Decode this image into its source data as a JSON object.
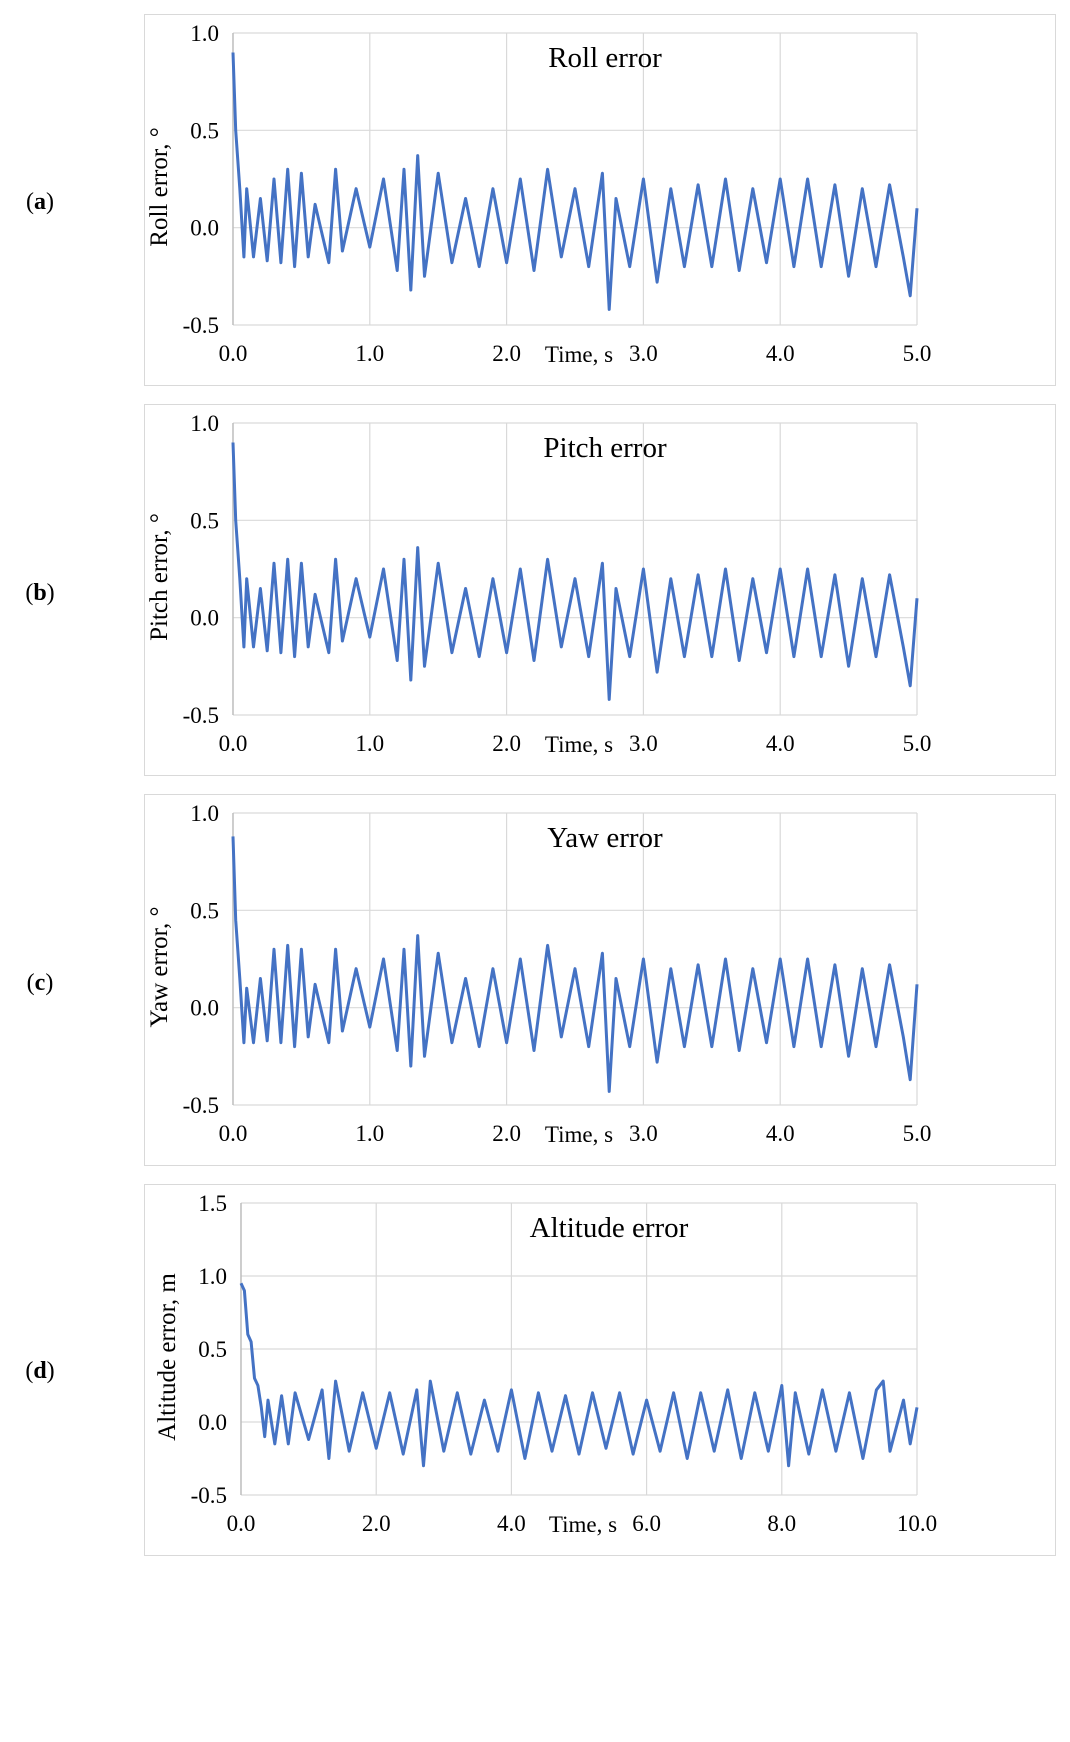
{
  "panels": [
    {
      "label": "a",
      "title": "Roll error",
      "ylabel": "Roll error, °",
      "xlabel": "Time, s"
    },
    {
      "label": "b",
      "title": "Pitch error",
      "ylabel": "Pitch error, °",
      "xlabel": "Time, s"
    },
    {
      "label": "c",
      "title": "Yaw error",
      "ylabel": "Yaw error, °",
      "xlabel": "Time, s"
    },
    {
      "label": "d",
      "title": "Altitude error",
      "ylabel": "Altitude error, m",
      "xlabel": "Time, s"
    }
  ],
  "line_color": "#4472c4",
  "chart_data": [
    {
      "type": "line",
      "title": "Roll error",
      "xlabel": "Time, s",
      "ylabel": "Roll error, °",
      "xlim": [
        0,
        5
      ],
      "ylim": [
        -0.5,
        1.0
      ],
      "xticks": [
        "0.0",
        "1.0",
        "2.0",
        "3.0",
        "4.0",
        "5.0"
      ],
      "yticks": [
        "-0.5",
        "0.0",
        "0.5",
        "1.0"
      ],
      "grid": true,
      "series": [
        {
          "x": [
            0,
            0.02,
            0.05,
            0.08,
            0.1,
            0.15,
            0.2,
            0.25,
            0.3,
            0.35,
            0.4,
            0.45,
            0.5,
            0.55,
            0.6,
            0.7,
            0.75,
            0.8,
            0.9,
            1.0,
            1.1,
            1.2,
            1.25,
            1.3,
            1.35,
            1.4,
            1.5,
            1.6,
            1.7,
            1.8,
            1.9,
            2.0,
            2.1,
            2.2,
            2.3,
            2.4,
            2.5,
            2.6,
            2.7,
            2.75,
            2.8,
            2.9,
            3.0,
            3.1,
            3.2,
            3.3,
            3.4,
            3.5,
            3.6,
            3.7,
            3.8,
            3.9,
            4.0,
            4.1,
            4.2,
            4.3,
            4.4,
            4.5,
            4.6,
            4.7,
            4.8,
            4.9,
            4.95,
            5.0
          ],
          "y": [
            0.9,
            0.5,
            0.2,
            -0.15,
            0.2,
            -0.15,
            0.15,
            -0.17,
            0.25,
            -0.18,
            0.3,
            -0.2,
            0.28,
            -0.15,
            0.12,
            -0.18,
            0.3,
            -0.12,
            0.2,
            -0.1,
            0.25,
            -0.22,
            0.3,
            -0.32,
            0.37,
            -0.25,
            0.28,
            -0.18,
            0.15,
            -0.2,
            0.2,
            -0.18,
            0.25,
            -0.22,
            0.3,
            -0.15,
            0.2,
            -0.2,
            0.28,
            -0.42,
            0.15,
            -0.2,
            0.25,
            -0.28,
            0.2,
            -0.2,
            0.22,
            -0.2,
            0.25,
            -0.22,
            0.2,
            -0.18,
            0.25,
            -0.2,
            0.25,
            -0.2,
            0.22,
            -0.25,
            0.2,
            -0.2,
            0.22,
            -0.15,
            -0.35,
            0.1
          ]
        }
      ]
    },
    {
      "type": "line",
      "title": "Pitch error",
      "xlabel": "Time, s",
      "ylabel": "Pitch error, °",
      "xlim": [
        0,
        5
      ],
      "ylim": [
        -0.5,
        1.0
      ],
      "xticks": [
        "0.0",
        "1.0",
        "2.0",
        "3.0",
        "4.0",
        "5.0"
      ],
      "yticks": [
        "-0.5",
        "0.0",
        "0.5",
        "1.0"
      ],
      "grid": true,
      "series": [
        {
          "x": [
            0,
            0.02,
            0.05,
            0.08,
            0.1,
            0.15,
            0.2,
            0.25,
            0.3,
            0.35,
            0.4,
            0.45,
            0.5,
            0.55,
            0.6,
            0.7,
            0.75,
            0.8,
            0.9,
            1.0,
            1.1,
            1.2,
            1.25,
            1.3,
            1.35,
            1.4,
            1.5,
            1.6,
            1.7,
            1.8,
            1.9,
            2.0,
            2.1,
            2.2,
            2.3,
            2.4,
            2.5,
            2.6,
            2.7,
            2.75,
            2.8,
            2.9,
            3.0,
            3.1,
            3.2,
            3.3,
            3.4,
            3.5,
            3.6,
            3.7,
            3.8,
            3.9,
            4.0,
            4.1,
            4.2,
            4.3,
            4.4,
            4.5,
            4.6,
            4.7,
            4.8,
            4.9,
            4.95,
            5.0
          ],
          "y": [
            0.9,
            0.5,
            0.2,
            -0.15,
            0.2,
            -0.15,
            0.15,
            -0.17,
            0.28,
            -0.18,
            0.3,
            -0.2,
            0.28,
            -0.15,
            0.12,
            -0.18,
            0.3,
            -0.12,
            0.2,
            -0.1,
            0.25,
            -0.22,
            0.3,
            -0.32,
            0.36,
            -0.25,
            0.28,
            -0.18,
            0.15,
            -0.2,
            0.2,
            -0.18,
            0.25,
            -0.22,
            0.3,
            -0.15,
            0.2,
            -0.2,
            0.28,
            -0.42,
            0.15,
            -0.2,
            0.25,
            -0.28,
            0.2,
            -0.2,
            0.22,
            -0.2,
            0.25,
            -0.22,
            0.2,
            -0.18,
            0.25,
            -0.2,
            0.25,
            -0.2,
            0.22,
            -0.25,
            0.2,
            -0.2,
            0.22,
            -0.15,
            -0.35,
            0.1
          ]
        }
      ]
    },
    {
      "type": "line",
      "title": "Yaw error",
      "xlabel": "Time, s",
      "ylabel": "Yaw error, °",
      "xlim": [
        0,
        5
      ],
      "ylim": [
        -0.5,
        1.0
      ],
      "xticks": [
        "0.0",
        "1.0",
        "2.0",
        "3.0",
        "4.0",
        "5.0"
      ],
      "yticks": [
        "-0.5",
        "0.0",
        "0.5",
        "1.0"
      ],
      "grid": true,
      "series": [
        {
          "x": [
            0,
            0.02,
            0.05,
            0.08,
            0.1,
            0.15,
            0.2,
            0.25,
            0.3,
            0.35,
            0.4,
            0.45,
            0.5,
            0.55,
            0.6,
            0.7,
            0.75,
            0.8,
            0.9,
            1.0,
            1.1,
            1.2,
            1.25,
            1.3,
            1.35,
            1.4,
            1.5,
            1.6,
            1.7,
            1.8,
            1.9,
            2.0,
            2.1,
            2.2,
            2.3,
            2.4,
            2.5,
            2.6,
            2.7,
            2.75,
            2.8,
            2.9,
            3.0,
            3.1,
            3.2,
            3.3,
            3.4,
            3.5,
            3.6,
            3.7,
            3.8,
            3.9,
            4.0,
            4.1,
            4.2,
            4.3,
            4.4,
            4.5,
            4.6,
            4.7,
            4.8,
            4.9,
            4.95,
            5.0
          ],
          "y": [
            0.88,
            0.45,
            0.15,
            -0.18,
            0.1,
            -0.18,
            0.15,
            -0.17,
            0.3,
            -0.18,
            0.32,
            -0.2,
            0.3,
            -0.15,
            0.12,
            -0.18,
            0.3,
            -0.12,
            0.2,
            -0.1,
            0.25,
            -0.22,
            0.3,
            -0.3,
            0.37,
            -0.25,
            0.28,
            -0.18,
            0.15,
            -0.2,
            0.2,
            -0.18,
            0.25,
            -0.22,
            0.32,
            -0.15,
            0.2,
            -0.2,
            0.28,
            -0.43,
            0.15,
            -0.2,
            0.25,
            -0.28,
            0.2,
            -0.2,
            0.22,
            -0.2,
            0.25,
            -0.22,
            0.2,
            -0.18,
            0.25,
            -0.2,
            0.25,
            -0.2,
            0.22,
            -0.25,
            0.2,
            -0.2,
            0.22,
            -0.15,
            -0.37,
            0.12
          ]
        }
      ]
    },
    {
      "type": "line",
      "title": "Altitude error",
      "xlabel": "Time, s",
      "ylabel": "Altitude error, m",
      "xlim": [
        0,
        10
      ],
      "ylim": [
        -0.5,
        1.5
      ],
      "xticks": [
        "0.0",
        "2.0",
        "4.0",
        "6.0",
        "8.0",
        "10.0"
      ],
      "yticks": [
        "-0.5",
        "0.0",
        "0.5",
        "1.0",
        "1.5"
      ],
      "grid": true,
      "series": [
        {
          "x": [
            0,
            0.05,
            0.1,
            0.15,
            0.2,
            0.25,
            0.3,
            0.35,
            0.4,
            0.5,
            0.6,
            0.7,
            0.8,
            1.0,
            1.2,
            1.3,
            1.4,
            1.6,
            1.8,
            2.0,
            2.2,
            2.4,
            2.6,
            2.7,
            2.8,
            3.0,
            3.2,
            3.4,
            3.6,
            3.8,
            4.0,
            4.2,
            4.4,
            4.6,
            4.8,
            5.0,
            5.2,
            5.4,
            5.6,
            5.8,
            6.0,
            6.2,
            6.4,
            6.6,
            6.8,
            7.0,
            7.2,
            7.4,
            7.6,
            7.8,
            8.0,
            8.1,
            8.2,
            8.4,
            8.6,
            8.8,
            9.0,
            9.2,
            9.4,
            9.5,
            9.6,
            9.8,
            9.9,
            10.0
          ],
          "y": [
            0.95,
            0.9,
            0.6,
            0.55,
            0.3,
            0.25,
            0.1,
            -0.1,
            0.15,
            -0.15,
            0.18,
            -0.15,
            0.2,
            -0.12,
            0.22,
            -0.25,
            0.28,
            -0.2,
            0.2,
            -0.18,
            0.2,
            -0.22,
            0.22,
            -0.3,
            0.28,
            -0.2,
            0.2,
            -0.22,
            0.15,
            -0.2,
            0.22,
            -0.25,
            0.2,
            -0.2,
            0.18,
            -0.22,
            0.2,
            -0.18,
            0.2,
            -0.22,
            0.15,
            -0.2,
            0.2,
            -0.25,
            0.2,
            -0.2,
            0.22,
            -0.25,
            0.2,
            -0.2,
            0.25,
            -0.3,
            0.2,
            -0.22,
            0.22,
            -0.2,
            0.2,
            -0.25,
            0.22,
            0.28,
            -0.2,
            0.15,
            -0.15,
            0.1
          ]
        }
      ]
    }
  ]
}
